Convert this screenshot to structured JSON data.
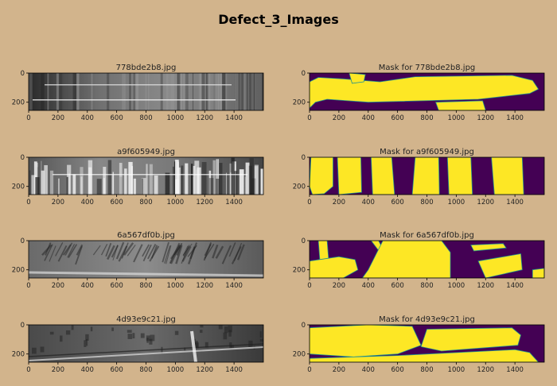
{
  "figure_title": "Defect_3_Images",
  "chart_data": {
    "type": "image-grid",
    "title": "Defect_3_Images",
    "x_ticks": [
      0,
      200,
      400,
      600,
      800,
      1000,
      1200,
      1400
    ],
    "y_ticks": [
      0,
      200
    ],
    "image_width": 1600,
    "image_height": 256,
    "colormap_mask": {
      "background": "#440154",
      "defect": "#fde725",
      "edge": "#21918c"
    },
    "panels": [
      {
        "row": 0,
        "kind": "image",
        "title": "778bde2b8.jpg",
        "style": "streak"
      },
      {
        "row": 0,
        "kind": "mask",
        "title": "Mask for 778bde2b8.jpg",
        "regions": [
          [
            [
              0,
              240
            ],
            [
              0,
              60
            ],
            [
              60,
              30
            ],
            [
              230,
              40
            ],
            [
              480,
              60
            ],
            [
              720,
              25
            ],
            [
              1380,
              15
            ],
            [
              1520,
              50
            ],
            [
              1560,
              110
            ],
            [
              1500,
              140
            ],
            [
              1150,
              180
            ],
            [
              400,
              200
            ],
            [
              120,
              180
            ],
            [
              40,
              200
            ]
          ],
          [
            [
              270,
              0
            ],
            [
              380,
              10
            ],
            [
              370,
              60
            ],
            [
              290,
              70
            ]
          ],
          [
            [
              860,
              200
            ],
            [
              1180,
              190
            ],
            [
              1200,
              256
            ],
            [
              880,
              256
            ]
          ]
        ]
      },
      {
        "row": 1,
        "kind": "image",
        "title": "a9f605949.jpg",
        "style": "bright-vertical"
      },
      {
        "row": 1,
        "kind": "mask",
        "title": "Mask for a9f605949.jpg",
        "regions": [
          [
            [
              10,
              0
            ],
            [
              160,
              0
            ],
            [
              160,
              200
            ],
            [
              100,
              250
            ],
            [
              20,
              256
            ],
            [
              0,
              200
            ]
          ],
          [
            [
              190,
              0
            ],
            [
              350,
              0
            ],
            [
              355,
              240
            ],
            [
              200,
              256
            ]
          ],
          [
            [
              420,
              0
            ],
            [
              560,
              0
            ],
            [
              580,
              256
            ],
            [
              430,
              256
            ]
          ],
          [
            [
              720,
              0
            ],
            [
              880,
              0
            ],
            [
              885,
              256
            ],
            [
              700,
              256
            ]
          ],
          [
            [
              940,
              0
            ],
            [
              1100,
              0
            ],
            [
              1110,
              256
            ],
            [
              950,
              256
            ]
          ],
          [
            [
              1240,
              0
            ],
            [
              1450,
              0
            ],
            [
              1460,
              256
            ],
            [
              1260,
              256
            ]
          ]
        ]
      },
      {
        "row": 2,
        "kind": "image",
        "title": "6a567df0b.jpg",
        "style": "diagonal"
      },
      {
        "row": 2,
        "kind": "mask",
        "title": "Mask for 6a567df0b.jpg",
        "regions": [
          [
            [
              60,
              0
            ],
            [
              120,
              0
            ],
            [
              130,
              130
            ],
            [
              70,
              130
            ]
          ],
          [
            [
              0,
              140
            ],
            [
              200,
              110
            ],
            [
              310,
              130
            ],
            [
              330,
              200
            ],
            [
              230,
              256
            ],
            [
              0,
              256
            ]
          ],
          [
            [
              420,
              0
            ],
            [
              470,
              0
            ],
            [
              500,
              60
            ],
            [
              480,
              80
            ]
          ],
          [
            [
              470,
              110
            ],
            [
              530,
              90
            ],
            [
              520,
              150
            ],
            [
              460,
              160
            ]
          ],
          [
            [
              500,
              0
            ],
            [
              900,
              0
            ],
            [
              960,
              80
            ],
            [
              960,
              256
            ],
            [
              360,
              256
            ],
            [
              400,
              200
            ]
          ],
          [
            [
              1100,
              30
            ],
            [
              1320,
              20
            ],
            [
              1340,
              50
            ],
            [
              1120,
              70
            ]
          ],
          [
            [
              1150,
              140
            ],
            [
              1440,
              90
            ],
            [
              1450,
              200
            ],
            [
              1200,
              256
            ]
          ],
          [
            [
              1520,
              200
            ],
            [
              1600,
              190
            ],
            [
              1600,
              256
            ],
            [
              1520,
              256
            ]
          ]
        ]
      },
      {
        "row": 3,
        "kind": "image",
        "title": "4d93e9c21.jpg",
        "style": "crack"
      },
      {
        "row": 3,
        "kind": "mask",
        "title": "Mask for 4d93e9c21.jpg",
        "regions": [
          [
            [
              0,
              20
            ],
            [
              400,
              0
            ],
            [
              700,
              10
            ],
            [
              760,
              140
            ],
            [
              600,
              200
            ],
            [
              300,
              220
            ],
            [
              0,
              200
            ]
          ],
          [
            [
              800,
              30
            ],
            [
              1380,
              20
            ],
            [
              1440,
              70
            ],
            [
              1420,
              140
            ],
            [
              900,
              180
            ],
            [
              760,
              150
            ]
          ],
          [
            [
              0,
              230
            ],
            [
              600,
              210
            ],
            [
              1400,
              170
            ],
            [
              1500,
              190
            ],
            [
              1560,
              256
            ],
            [
              0,
              256
            ]
          ]
        ]
      }
    ]
  }
}
